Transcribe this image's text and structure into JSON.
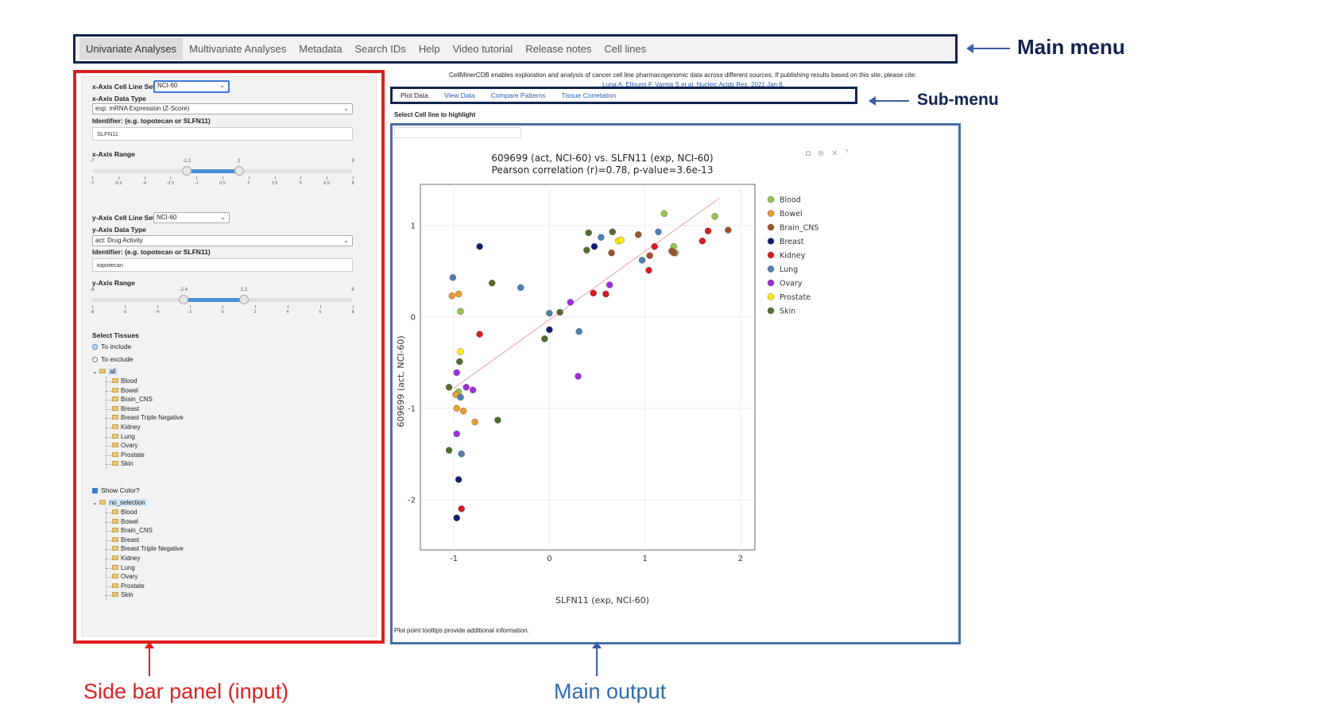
{
  "main_menu": {
    "tabs": [
      {
        "label": "Univariate Analyses",
        "active": true
      },
      {
        "label": "Multivariate Analyses"
      },
      {
        "label": "Metadata"
      },
      {
        "label": "Search IDs"
      },
      {
        "label": "Help"
      },
      {
        "label": "Video tutorial"
      },
      {
        "label": "Release notes"
      },
      {
        "label": "Cell lines"
      }
    ],
    "annotation": "Main menu"
  },
  "sidebar": {
    "annotation": "Side bar panel (input)",
    "x_cell_line_set_label": "x-Axis Cell Line Set",
    "x_cell_line_set_value": "NCI-60",
    "x_data_type_label": "x-Axis Data Type",
    "x_data_type_value": "exp: mRNA Expression (Z-Score)",
    "x_identifier_label": "Identifier: (e.g. topotecan or SLFN11)",
    "x_identifier_value": "SLFN11",
    "x_range_label": "x-Axis Range",
    "x_range": {
      "min": -7,
      "max": 9,
      "low": -1.2,
      "high": 2,
      "grid": [
        "-7",
        "-5.5",
        "-4",
        "-2.5",
        "-1",
        "0.5",
        "2",
        "3.5",
        "5",
        "6.5",
        "8"
      ]
    },
    "y_cell_line_set_label": "y-Axis Cell Line Set",
    "y_cell_line_set_value": "NCI-60",
    "y_data_type_label": "y-Axis Data Type",
    "y_data_type_value": "act: Drug Activity",
    "y_identifier_label": "Identifier: (e.g. topotecan or SLFN11)",
    "y_identifier_value": "topotecan",
    "y_range_label": "y-Axis Range",
    "y_range": {
      "min": -8,
      "max": 8,
      "low": -2.4,
      "high": 1.3,
      "grid": [
        "-8",
        "-6",
        "-4",
        "-2",
        "0",
        "2",
        "4",
        "6",
        "8"
      ]
    },
    "select_tissues_label": "Select Tissues",
    "radio_include": "To include",
    "radio_exclude": "To exclude",
    "tree1_root": "all",
    "tree1_items": [
      "Blood",
      "Bowel",
      "Brain_CNS",
      "Breast",
      "Breast Triple Negative",
      "Kidney",
      "Lung",
      "Ovary",
      "Prostate",
      "Skin"
    ],
    "show_color_label": "Show Color?",
    "tree2_root": "no_selection",
    "tree2_items": [
      "Blood",
      "Bowel",
      "Brain_CNS",
      "Breast",
      "Breast Triple Negative",
      "Kidney",
      "Lung",
      "Ovary",
      "Prostate",
      "Skin"
    ]
  },
  "header_info": {
    "text": "CellMinerCDB enables exploration and analysis of cancer cell line pharmacogenomic data across different sources. If publishing results based on this site, please cite:",
    "citation": "Luna A, Elloumi F, Varma S et al. Nucleic Acids Res. 2021 Jan 8."
  },
  "submenu": {
    "annotation": "Sub-menu",
    "tabs": [
      {
        "label": "Plot Data",
        "active": true
      },
      {
        "label": "View Data"
      },
      {
        "label": "Compare Patterns"
      },
      {
        "label": "Tissue Correlation"
      }
    ]
  },
  "main_output": {
    "annotation": "Main output",
    "highlight_label": "Select Cell line to highlight",
    "tooltip_hint": "Plot point tooltips provide additional information.",
    "toolbar_icons": [
      "camera-icon",
      "zoom-icon",
      "reset-icon",
      "autoscale-icon"
    ]
  },
  "chart_data": {
    "type": "scatter",
    "title": "609699 (act, NCI-60) vs. SLFN11 (exp, NCI-60)",
    "subtitle": "Pearson correlation (r)=0.78, p-value=3.6e-13",
    "xlabel": "SLFN11 (exp, NCI-60)",
    "ylabel": "609699 (act, NCI-60)",
    "xlim": [
      -1.35,
      2.15
    ],
    "ylim": [
      -2.55,
      1.45
    ],
    "xticks": [
      "-1",
      "0",
      "1",
      "2"
    ],
    "xtick_values": [
      -1,
      0,
      1,
      2
    ],
    "yticks": [
      "-2",
      "-1",
      "0",
      "1"
    ],
    "ytick_values": [
      -2,
      -1,
      0,
      1
    ],
    "grid": true,
    "legend_position": "right",
    "trendline": {
      "x": [
        -1.0,
        1.78
      ],
      "y": [
        -0.78,
        1.3
      ],
      "color": "#e8a0a8"
    },
    "series": [
      {
        "name": "Blood",
        "color": "#99c24d",
        "points": [
          [
            1.2,
            1.13
          ],
          [
            1.73,
            1.1
          ],
          [
            1.3,
            0.77
          ],
          [
            1.32,
            0.7
          ],
          [
            -0.93,
            0.06
          ],
          [
            -0.95,
            -0.82
          ]
        ]
      },
      {
        "name": "Bowel",
        "color": "#e89f2f",
        "points": [
          [
            -1.02,
            0.23
          ],
          [
            -0.95,
            0.25
          ],
          [
            -0.97,
            -1.0
          ],
          [
            -0.9,
            -1.03
          ],
          [
            -0.78,
            -1.15
          ],
          [
            -0.98,
            -0.85
          ]
        ]
      },
      {
        "name": "Brain_CNS",
        "color": "#a0522d",
        "points": [
          [
            0.93,
            0.9
          ],
          [
            1.87,
            0.95
          ],
          [
            1.3,
            0.7
          ],
          [
            0.65,
            0.7
          ],
          [
            1.05,
            0.67
          ],
          [
            1.28,
            0.72
          ]
        ]
      },
      {
        "name": "Breast",
        "color": "#151b6e",
        "points": [
          [
            -0.73,
            0.77
          ],
          [
            0.47,
            0.77
          ],
          [
            0.0,
            -0.14
          ],
          [
            -0.95,
            -1.78
          ],
          [
            -0.97,
            -2.2
          ]
        ]
      },
      {
        "name": "Kidney",
        "color": "#d9191c",
        "points": [
          [
            1.6,
            0.83
          ],
          [
            1.66,
            0.94
          ],
          [
            1.1,
            0.77
          ],
          [
            1.04,
            0.51
          ],
          [
            0.46,
            0.26
          ],
          [
            0.59,
            0.25
          ],
          [
            -0.73,
            -0.19
          ],
          [
            -0.92,
            -2.1
          ]
        ]
      },
      {
        "name": "Lung",
        "color": "#4f7fad",
        "points": [
          [
            -1.01,
            0.43
          ],
          [
            -0.3,
            0.32
          ],
          [
            0.54,
            0.87
          ],
          [
            1.14,
            0.93
          ],
          [
            0.97,
            0.62
          ],
          [
            0.0,
            0.04
          ],
          [
            0.31,
            -0.16
          ],
          [
            -0.93,
            -0.88
          ],
          [
            -0.92,
            -1.5
          ]
        ]
      },
      {
        "name": "Ovary",
        "color": "#9b30d9",
        "points": [
          [
            0.63,
            0.35
          ],
          [
            0.22,
            0.16
          ],
          [
            -0.97,
            -0.61
          ],
          [
            -0.87,
            -0.77
          ],
          [
            -0.8,
            -0.8
          ],
          [
            0.3,
            -0.65
          ],
          [
            -0.97,
            -1.28
          ]
        ]
      },
      {
        "name": "Prostate",
        "color": "#ffee00",
        "points": [
          [
            0.72,
            0.83
          ],
          [
            0.75,
            0.84
          ],
          [
            -0.93,
            -0.38
          ]
        ]
      },
      {
        "name": "Skin",
        "color": "#556b2f",
        "points": [
          [
            0.41,
            0.92
          ],
          [
            0.66,
            0.93
          ],
          [
            0.39,
            0.73
          ],
          [
            -0.6,
            0.37
          ],
          [
            0.11,
            0.05
          ],
          [
            -0.05,
            -0.24
          ],
          [
            -0.94,
            -0.49
          ],
          [
            -1.05,
            -0.77
          ],
          [
            -0.54,
            -1.13
          ],
          [
            -1.05,
            -1.46
          ]
        ]
      }
    ]
  }
}
